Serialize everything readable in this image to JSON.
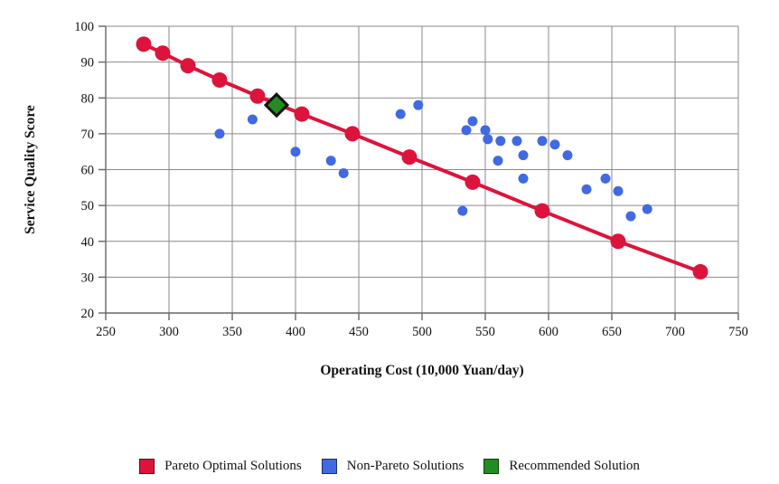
{
  "chart_data": {
    "type": "scatter",
    "title": "",
    "xlabel": "Operating Cost (10,000 Yuan/day)",
    "ylabel": "Service Quality Score",
    "xlim": [
      250,
      750
    ],
    "ylim": [
      20,
      100
    ],
    "xticks": [
      250,
      300,
      350,
      400,
      450,
      500,
      550,
      600,
      650,
      700,
      750
    ],
    "yticks": [
      20,
      30,
      40,
      50,
      60,
      70,
      80,
      90,
      100
    ],
    "grid": true,
    "legend_position": "bottom-center",
    "series": [
      {
        "name": "Pareto Optimal Solutions",
        "marker": "circle",
        "connected_by_line": true,
        "color": "#DC143C",
        "marker_radius": 8.5,
        "line_width": 4,
        "points": [
          [
            280,
            95
          ],
          [
            295,
            92.5
          ],
          [
            315,
            89
          ],
          [
            340,
            85
          ],
          [
            370,
            80.5
          ],
          [
            405,
            75.5
          ],
          [
            445,
            70
          ],
          [
            490,
            63.5
          ],
          [
            540,
            56.5
          ],
          [
            595,
            48.5
          ],
          [
            655,
            40
          ],
          [
            720,
            31.5
          ]
        ]
      },
      {
        "name": "Non-Pareto Solutions",
        "marker": "circle",
        "connected_by_line": false,
        "color": "#4169E1",
        "marker_radius": 5.5,
        "points": [
          [
            340,
            70
          ],
          [
            366,
            74
          ],
          [
            400,
            65
          ],
          [
            428,
            62.5
          ],
          [
            438,
            59
          ],
          [
            483,
            75.5
          ],
          [
            497,
            78
          ],
          [
            532,
            48.5
          ],
          [
            535,
            71
          ],
          [
            540,
            73.5
          ],
          [
            550,
            71
          ],
          [
            552,
            68.5
          ],
          [
            560,
            62.5
          ],
          [
            562,
            68
          ],
          [
            575,
            68
          ],
          [
            580,
            64
          ],
          [
            580,
            57.5
          ],
          [
            595,
            68
          ],
          [
            605,
            67
          ],
          [
            615,
            64
          ],
          [
            630,
            54.5
          ],
          [
            645,
            57.5
          ],
          [
            655,
            54
          ],
          [
            665,
            47
          ],
          [
            678,
            49
          ]
        ]
      },
      {
        "name": "Recommended Solution",
        "marker": "diamond",
        "connected_by_line": false,
        "color": "#228B22",
        "edge_color": "#111111",
        "marker_half_diagonal": 12,
        "points": [
          [
            385,
            78
          ]
        ]
      }
    ]
  },
  "legend": {
    "items": [
      {
        "label": "Pareto Optimal Solutions",
        "color": "#DC143C"
      },
      {
        "label": "Non-Pareto Solutions",
        "color": "#4169E1"
      },
      {
        "label": "Recommended Solution",
        "color": "#228B22"
      }
    ]
  },
  "style": {
    "grid_color": "#8a8a8a",
    "axis_color": "#666666",
    "text_color": "#111111",
    "background": "#ffffff"
  }
}
